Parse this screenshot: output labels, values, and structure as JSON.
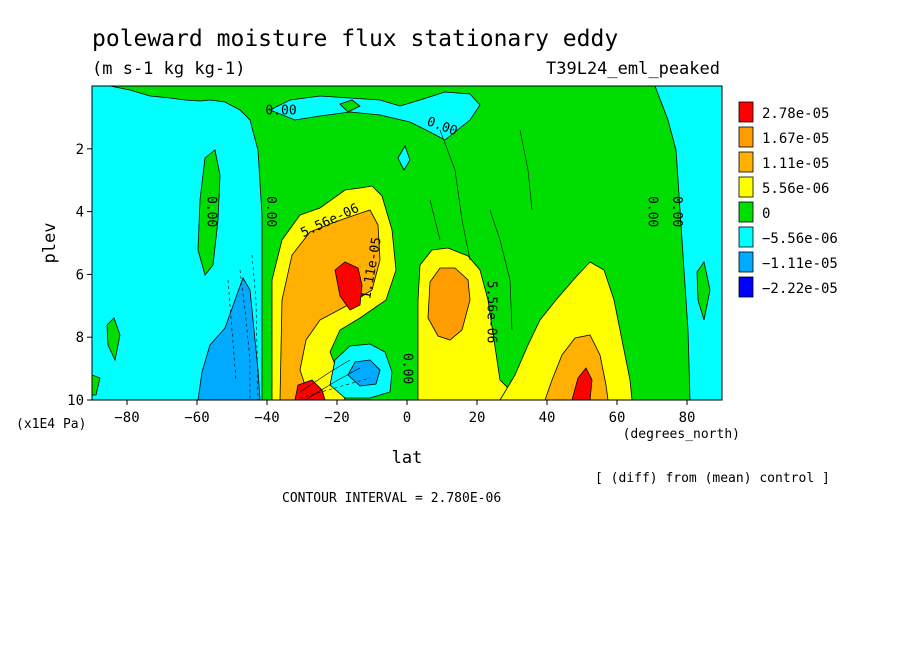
{
  "chart_data": {
    "type": "heatmap",
    "title": "poleward moisture flux stationary eddy",
    "units": "(m s-1 kg kg-1)",
    "run_label": "T39L24_eml_peaked",
    "xlabel": "lat",
    "x_units": "(degrees_north)",
    "ylabel": "plev",
    "y_units": "(x1E4 Pa)",
    "xlim": [
      -90,
      90
    ],
    "ylim": [
      10,
      0
    ],
    "x_ticks": [
      -80,
      -60,
      -40,
      -20,
      0,
      20,
      40,
      60,
      80
    ],
    "y_ticks": [
      2,
      4,
      6,
      8,
      10
    ],
    "contour_interval": "CONTOUR INTERVAL = 2.780E-06",
    "note": "[ (diff) from (mean) control ]",
    "legend": {
      "placement": "right",
      "entries": [
        {
          "label": "2.78e-05",
          "color": "#ff0000"
        },
        {
          "label": "1.67e-05",
          "color": "#ff9c00"
        },
        {
          "label": "1.11e-05",
          "color": "#ffb000"
        },
        {
          "label": "5.56e-06",
          "color": "#ffff00"
        },
        {
          "label": "0",
          "color": "#00dd00"
        },
        {
          "label": "−5.56e-06",
          "color": "#00ffff"
        },
        {
          "label": "−1.11e-05",
          "color": "#00aaff"
        },
        {
          "label": "−2.22e-05",
          "color": "#0000ff"
        }
      ]
    },
    "contour_labels": [
      {
        "text": "0.00",
        "lat": -36,
        "plev": 0.8,
        "rotate": 0
      },
      {
        "text": "0.00",
        "lat": 10,
        "plev": 1.3,
        "rotate": 20
      },
      {
        "text": "0.00",
        "lat": -56,
        "plev": 4.0,
        "rotate": 90
      },
      {
        "text": "0.00",
        "lat": -39,
        "plev": 4.0,
        "rotate": 90
      },
      {
        "text": "5.56e-06",
        "lat": -22,
        "plev": 4.3,
        "rotate": -25
      },
      {
        "text": "1.11e-05",
        "lat": -10,
        "plev": 5.8,
        "rotate": -80
      },
      {
        "text": "5.56e-06",
        "lat": 24,
        "plev": 7.2,
        "rotate": 90
      },
      {
        "text": "0.00",
        "lat": 0,
        "plev": 9.0,
        "rotate": 90
      },
      {
        "text": "0.00",
        "lat": 70,
        "plev": 4.0,
        "rotate": 90
      },
      {
        "text": "0.00",
        "lat": 77,
        "plev": 4.0,
        "rotate": 90
      }
    ],
    "features": [
      {
        "color": "#00ffff",
        "lat": [
          -88,
          -40
        ],
        "plev": [
          0.3,
          10
        ],
        "desc": "negative region southern midlatitudes"
      },
      {
        "color": "#00aaff",
        "lat": [
          -62,
          -44
        ],
        "plev": [
          7,
          10
        ]
      },
      {
        "color": "#ffb000",
        "lat": [
          -36,
          -12
        ],
        "plev": [
          4,
          9.5
        ]
      },
      {
        "color": "#ff0000",
        "lat": [
          -20,
          -16
        ],
        "plev": [
          5.7,
          7.2
        ]
      },
      {
        "color": "#ffff00",
        "lat": [
          6,
          28
        ],
        "plev": [
          6,
          10
        ]
      },
      {
        "color": "#ff9c00",
        "lat": [
          8,
          22
        ],
        "plev": [
          6.3,
          8.5
        ]
      },
      {
        "color": "#ffff00",
        "lat": [
          28,
          62
        ],
        "plev": [
          6.5,
          10
        ]
      },
      {
        "color": "#ff0000",
        "lat": [
          47,
          51
        ],
        "plev": [
          9.0,
          10
        ]
      },
      {
        "color": "#00aaff",
        "lat": [
          -20,
          -4
        ],
        "plev": [
          8.5,
          10
        ]
      },
      {
        "color": "#00ffff",
        "lat": [
          80,
          90
        ],
        "plev": [
          0.3,
          10
        ]
      }
    ]
  }
}
